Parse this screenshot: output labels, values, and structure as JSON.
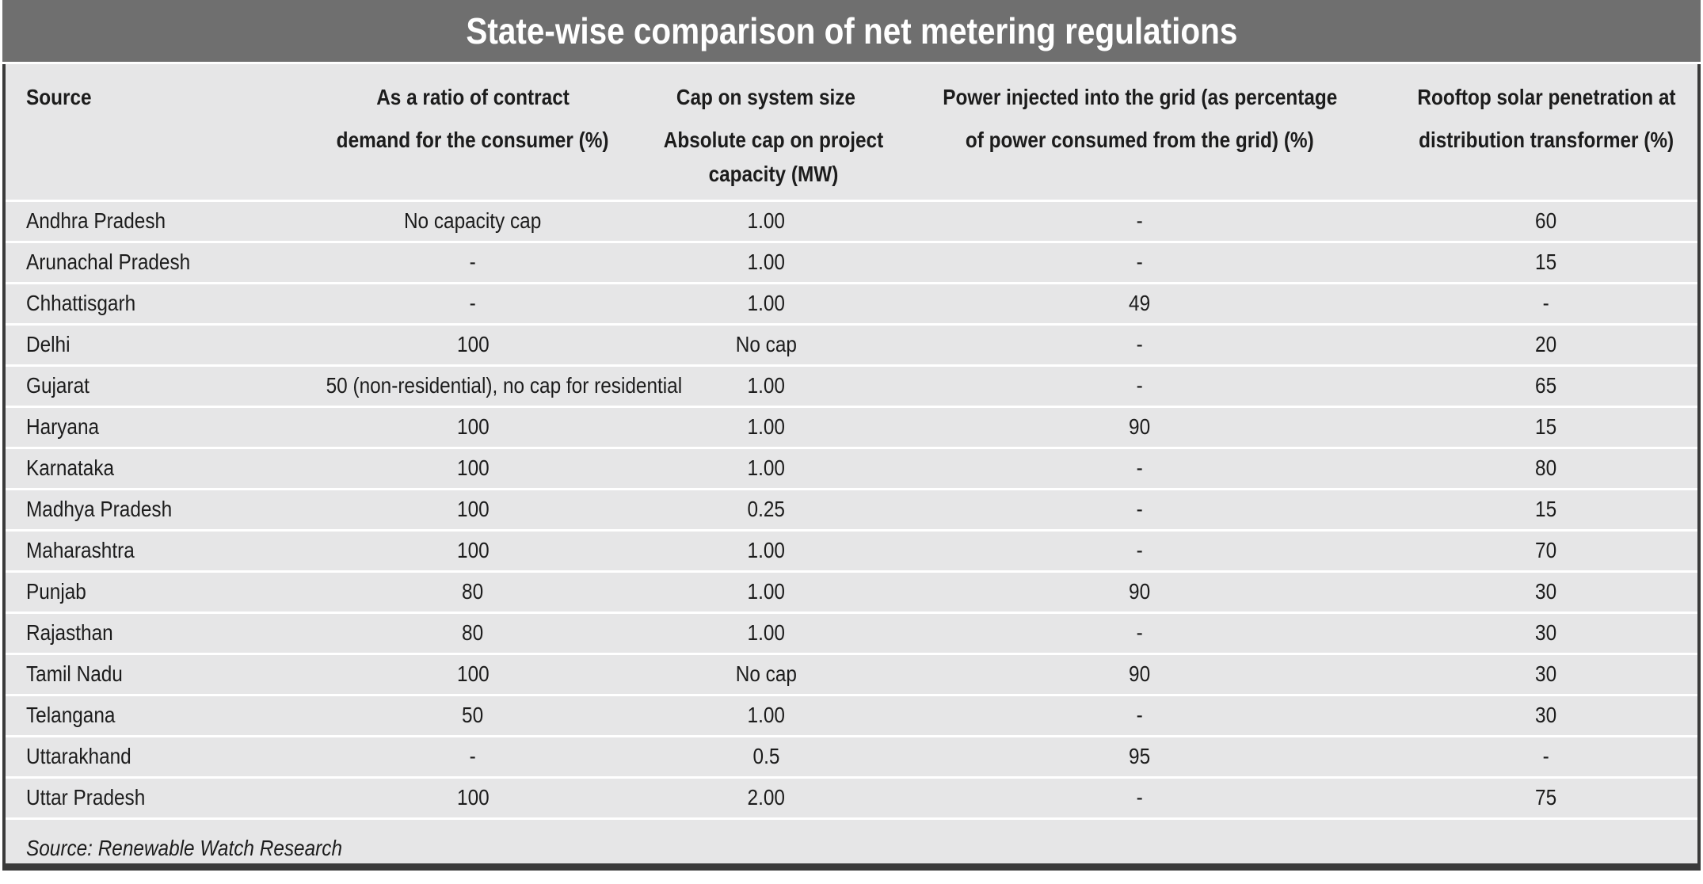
{
  "title": "State-wise comparison of net metering regulations",
  "footer": {
    "source_note": "Source: Renewable Watch Research"
  },
  "colors": {
    "titlebar_bg": "#6f6f6f",
    "title_text": "#ffffff",
    "body_bg": "#e6e6e7",
    "frame": "#3a3a3a",
    "separator": "#ffffff",
    "text": "#1c1c1c"
  },
  "chart_data": {
    "type": "table",
    "title": "State-wise comparison of net metering regulations",
    "columns": [
      {
        "id": "source",
        "header1": "Source",
        "header2": "",
        "align": "left"
      },
      {
        "id": "ratio-contract-demand",
        "header1": "As a ratio of contract",
        "header2": "demand for the consumer (%)",
        "align": "center"
      },
      {
        "id": "cap-system-size",
        "header1": "Cap on system size",
        "header2": "Absolute cap on project\ncapacity (MW)",
        "align": "center"
      },
      {
        "id": "power-injected",
        "header1": "Power injected into the grid (as percentage",
        "header2": "of power consumed from the grid) (%)",
        "align": "center"
      },
      {
        "id": "rooftop-penetration",
        "header1": "Rooftop solar penetration at",
        "header2": "distribution transformer (%)",
        "align": "center"
      }
    ],
    "rows": [
      [
        "Andhra Pradesh",
        "No capacity cap",
        "1.00",
        "-",
        "60"
      ],
      [
        "Arunachal Pradesh",
        "-",
        "1.00",
        "-",
        "15"
      ],
      [
        "Chhattisgarh",
        "-",
        "1.00",
        "49",
        "-"
      ],
      [
        "Delhi",
        "100",
        "No cap",
        "-",
        "20"
      ],
      [
        "Gujarat",
        "50 (non-residential), no cap for residential",
        "1.00",
        "-",
        "65"
      ],
      [
        "Haryana",
        "100",
        "1.00",
        "90",
        "15"
      ],
      [
        "Karnataka",
        "100",
        "1.00",
        "-",
        "80"
      ],
      [
        "Madhya Pradesh",
        "100",
        "0.25",
        "-",
        "15"
      ],
      [
        "Maharashtra",
        "100",
        "1.00",
        "-",
        "70"
      ],
      [
        "Punjab",
        "80",
        "1.00",
        "90",
        "30"
      ],
      [
        "Rajasthan",
        "80",
        "1.00",
        "-",
        "30"
      ],
      [
        "Tamil Nadu",
        "100",
        "No cap",
        "90",
        "30"
      ],
      [
        "Telangana",
        "50",
        "1.00",
        "-",
        "30"
      ],
      [
        "Uttarakhand",
        "-",
        "0.5",
        "95",
        "-"
      ],
      [
        "Uttar Pradesh",
        "100",
        "2.00",
        "-",
        "75"
      ]
    ]
  }
}
